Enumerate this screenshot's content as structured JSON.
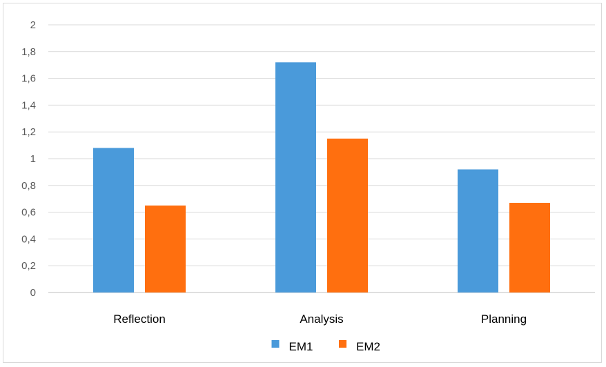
{
  "chart_data": {
    "type": "bar",
    "categories": [
      "Reflection",
      "Analysis",
      "Planning"
    ],
    "series": [
      {
        "name": "EM1",
        "values": [
          1.08,
          1.72,
          0.92
        ],
        "color": "#4a9ada"
      },
      {
        "name": "EM2",
        "values": [
          0.65,
          1.15,
          0.67
        ],
        "color": "#ff6f0f"
      }
    ],
    "y_ticks": [
      "0",
      "0,2",
      "0,4",
      "0,6",
      "0,8",
      "1",
      "1,2",
      "1,4",
      "1,6",
      "1,8",
      "2"
    ],
    "ylim": [
      0,
      2
    ],
    "grid": true,
    "legend": "bottom"
  }
}
